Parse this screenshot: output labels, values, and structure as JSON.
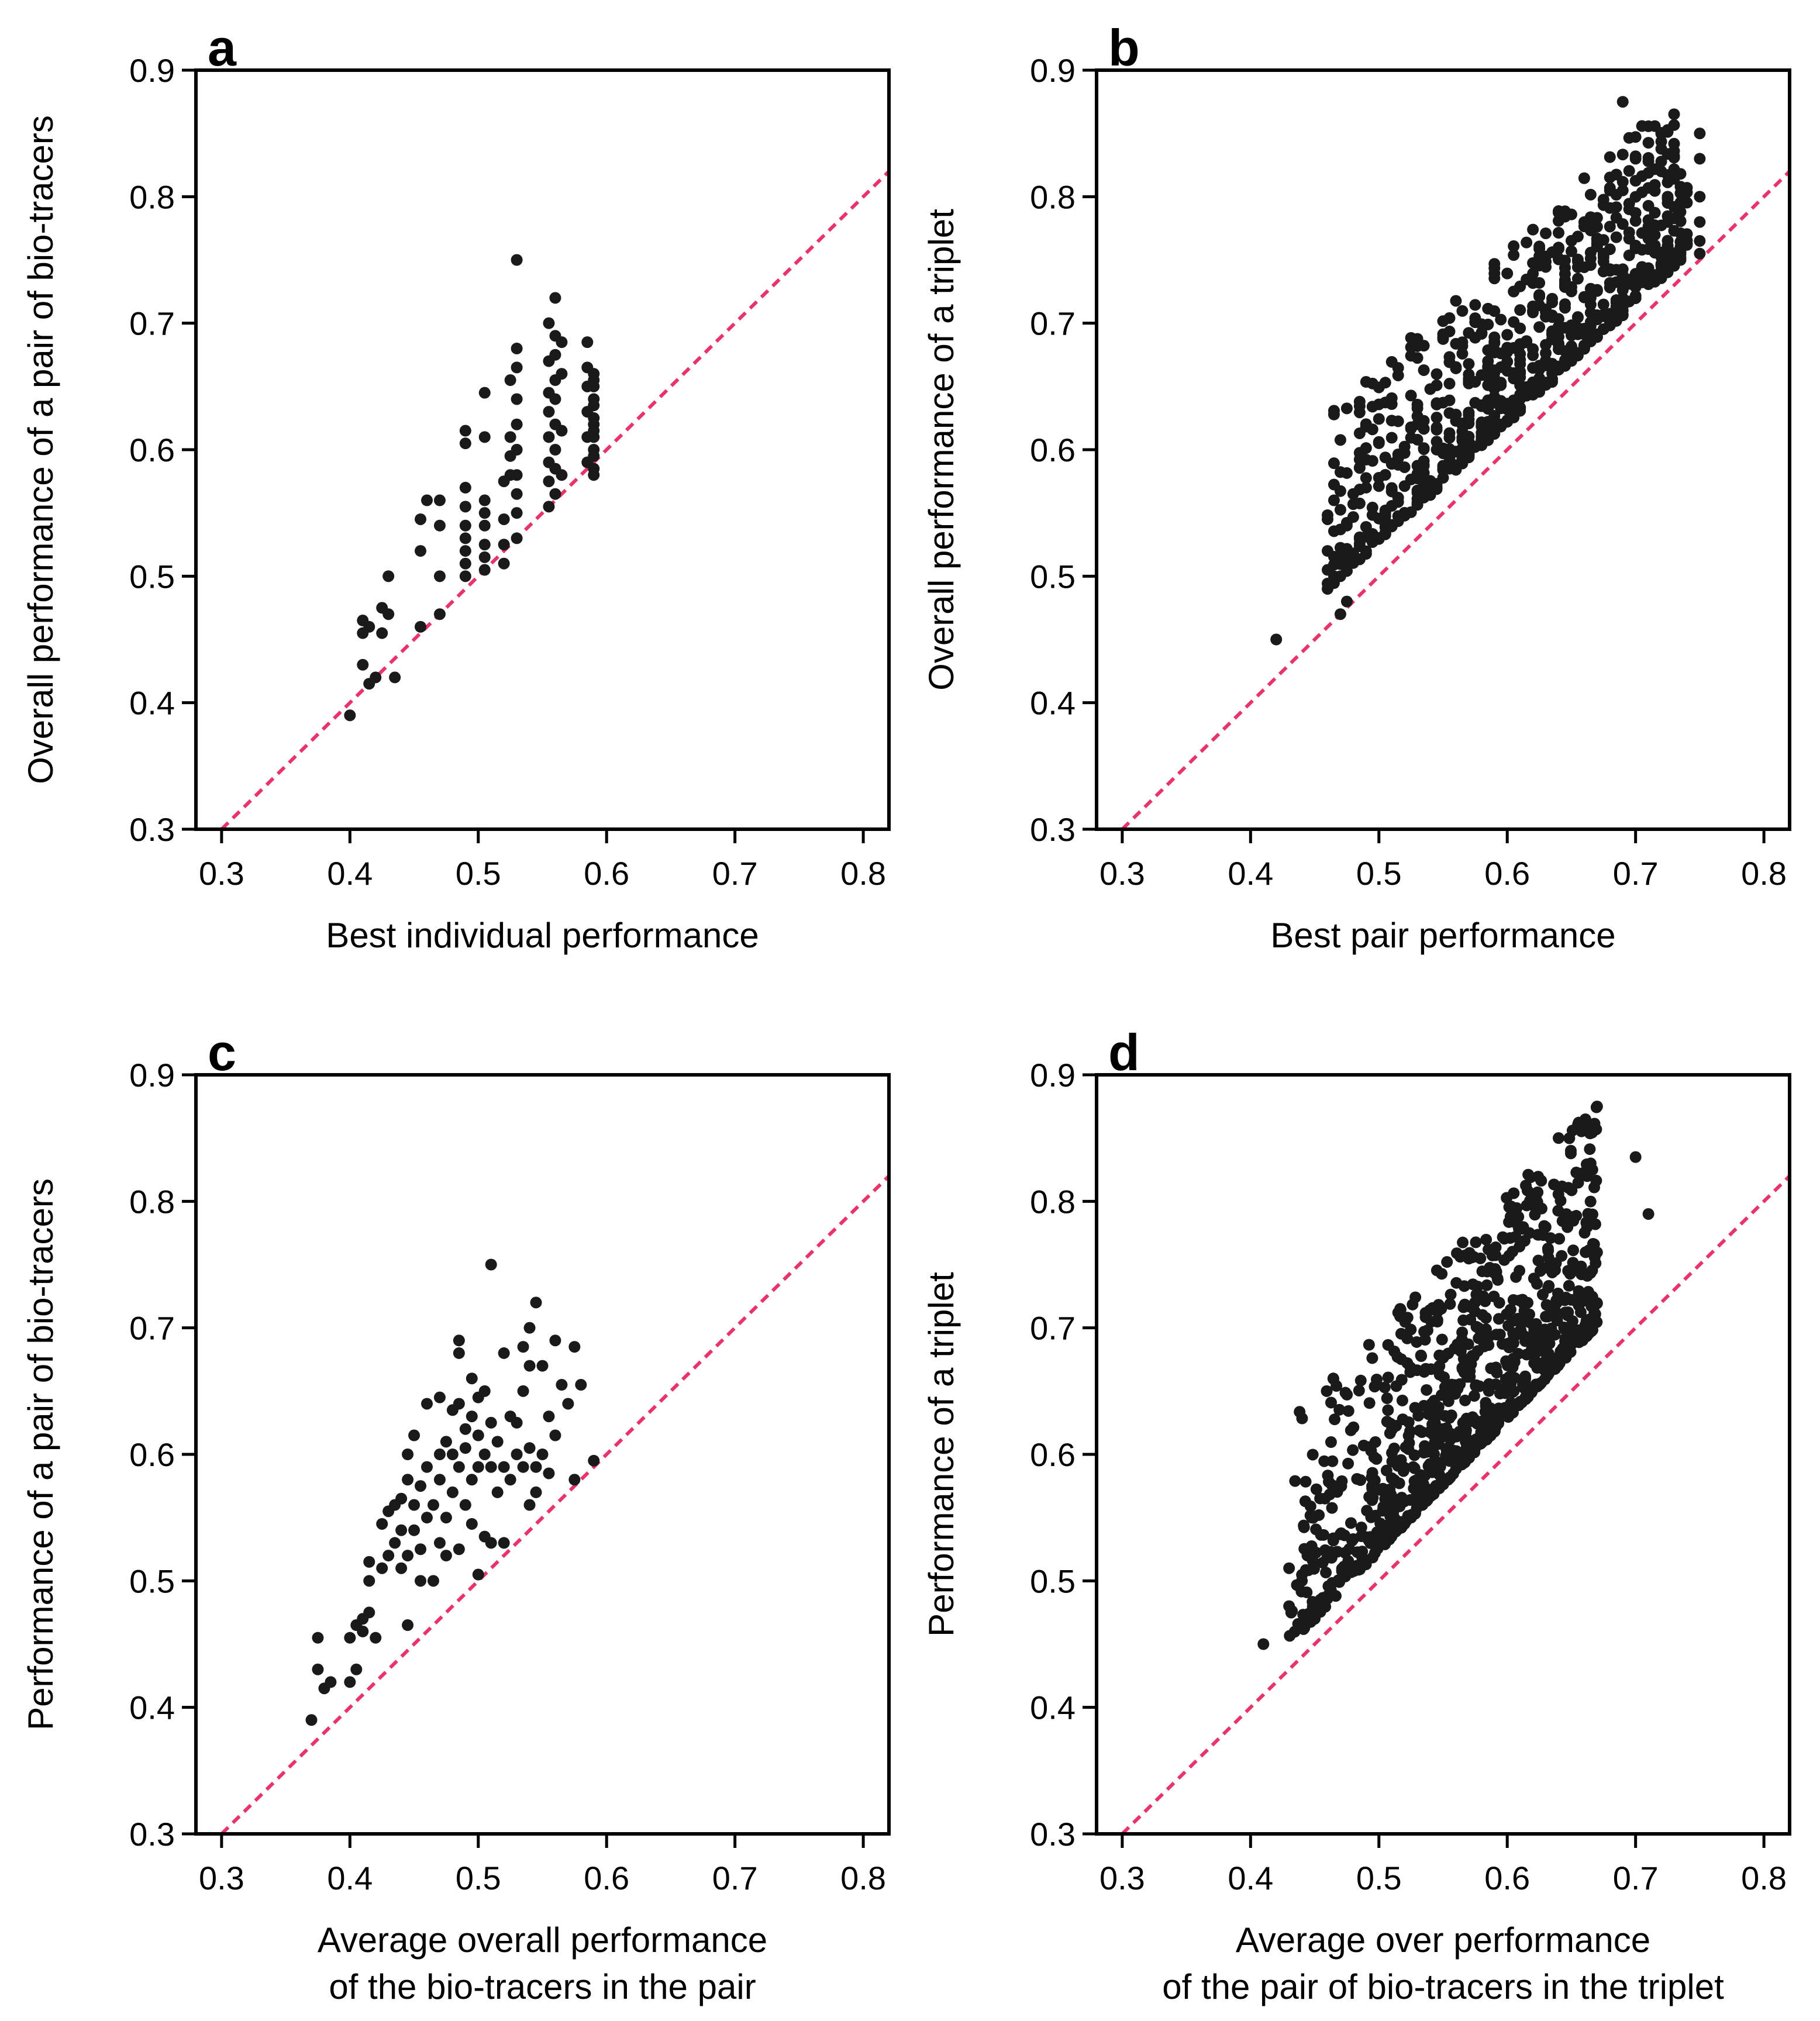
{
  "colors": {
    "points": "#1a1a1a",
    "reference_line": "#e8346a",
    "axes": "#000000",
    "background": "#ffffff"
  },
  "chart_data": [
    {
      "type": "scatter",
      "panel": "a",
      "xlabel": [
        "Best individual performance"
      ],
      "ylabel": "Overall performance of a pair of bio-tracers",
      "xlim": [
        0.28,
        0.82
      ],
      "ylim": [
        0.3,
        0.9
      ],
      "xticks": [
        "0.3",
        "0.4",
        "0.5",
        "0.6",
        "0.7",
        "0.8"
      ],
      "yticks": [
        "0.3",
        "0.4",
        "0.5",
        "0.6",
        "0.7",
        "0.8",
        "0.9"
      ],
      "reference_line": "y = x",
      "points": [
        [
          0.4,
          0.39
        ],
        [
          0.41,
          0.43
        ],
        [
          0.41,
          0.455
        ],
        [
          0.41,
          0.465
        ],
        [
          0.415,
          0.415
        ],
        [
          0.415,
          0.46
        ],
        [
          0.42,
          0.42
        ],
        [
          0.425,
          0.455
        ],
        [
          0.425,
          0.475
        ],
        [
          0.43,
          0.47
        ],
        [
          0.43,
          0.5
        ],
        [
          0.435,
          0.42
        ],
        [
          0.455,
          0.46
        ],
        [
          0.455,
          0.52
        ],
        [
          0.455,
          0.545
        ],
        [
          0.46,
          0.56
        ],
        [
          0.47,
          0.47
        ],
        [
          0.47,
          0.5
        ],
        [
          0.47,
          0.54
        ],
        [
          0.47,
          0.56
        ],
        [
          0.49,
          0.5
        ],
        [
          0.49,
          0.51
        ],
        [
          0.49,
          0.52
        ],
        [
          0.49,
          0.53
        ],
        [
          0.49,
          0.54
        ],
        [
          0.49,
          0.555
        ],
        [
          0.49,
          0.57
        ],
        [
          0.49,
          0.605
        ],
        [
          0.49,
          0.615
        ],
        [
          0.505,
          0.505
        ],
        [
          0.505,
          0.515
        ],
        [
          0.505,
          0.525
        ],
        [
          0.505,
          0.54
        ],
        [
          0.505,
          0.55
        ],
        [
          0.505,
          0.56
        ],
        [
          0.505,
          0.645
        ],
        [
          0.505,
          0.61
        ],
        [
          0.52,
          0.51
        ],
        [
          0.52,
          0.525
        ],
        [
          0.52,
          0.545
        ],
        [
          0.52,
          0.575
        ],
        [
          0.525,
          0.58
        ],
        [
          0.525,
          0.595
        ],
        [
          0.525,
          0.61
        ],
        [
          0.525,
          0.655
        ],
        [
          0.53,
          0.53
        ],
        [
          0.53,
          0.55
        ],
        [
          0.53,
          0.565
        ],
        [
          0.53,
          0.58
        ],
        [
          0.53,
          0.6
        ],
        [
          0.53,
          0.62
        ],
        [
          0.53,
          0.64
        ],
        [
          0.53,
          0.665
        ],
        [
          0.53,
          0.68
        ],
        [
          0.53,
          0.75
        ],
        [
          0.555,
          0.555
        ],
        [
          0.555,
          0.575
        ],
        [
          0.555,
          0.59
        ],
        [
          0.555,
          0.61
        ],
        [
          0.555,
          0.63
        ],
        [
          0.555,
          0.645
        ],
        [
          0.555,
          0.67
        ],
        [
          0.555,
          0.7
        ],
        [
          0.56,
          0.565
        ],
        [
          0.56,
          0.585
        ],
        [
          0.56,
          0.6
        ],
        [
          0.56,
          0.62
        ],
        [
          0.56,
          0.64
        ],
        [
          0.56,
          0.655
        ],
        [
          0.56,
          0.675
        ],
        [
          0.56,
          0.69
        ],
        [
          0.56,
          0.72
        ],
        [
          0.565,
          0.58
        ],
        [
          0.565,
          0.615
        ],
        [
          0.565,
          0.66
        ],
        [
          0.565,
          0.685
        ],
        [
          0.585,
          0.59
        ],
        [
          0.585,
          0.61
        ],
        [
          0.585,
          0.63
        ],
        [
          0.585,
          0.65
        ],
        [
          0.585,
          0.665
        ],
        [
          0.585,
          0.685
        ],
        [
          0.59,
          0.585
        ],
        [
          0.59,
          0.6
        ],
        [
          0.59,
          0.615
        ],
        [
          0.59,
          0.625
        ],
        [
          0.59,
          0.64
        ],
        [
          0.59,
          0.655
        ],
        [
          0.59,
          0.58
        ],
        [
          0.59,
          0.595
        ],
        [
          0.59,
          0.61
        ],
        [
          0.59,
          0.62
        ],
        [
          0.59,
          0.635
        ],
        [
          0.59,
          0.65
        ],
        [
          0.59,
          0.66
        ]
      ]
    },
    {
      "type": "scatter",
      "panel": "b",
      "xlabel": [
        "Best pair performance"
      ],
      "ylabel": "Overall performance of a triplet",
      "xlim": [
        0.28,
        0.82
      ],
      "ylim": [
        0.3,
        0.9
      ],
      "xticks": [
        "0.3",
        "0.4",
        "0.5",
        "0.6",
        "0.7",
        "0.8"
      ],
      "yticks": [
        "0.3",
        "0.4",
        "0.5",
        "0.6",
        "0.7",
        "0.8",
        "0.9"
      ],
      "reference_line": "y = x",
      "gen": {
        "x_min": 0.46,
        "x_max": 0.74,
        "intercept": 0.1,
        "slope": 0.95,
        "spread": 0.085,
        "count": 780,
        "seed": 7
      },
      "points": [
        [
          0.42,
          0.45
        ],
        [
          0.46,
          0.49
        ],
        [
          0.46,
          0.505
        ],
        [
          0.46,
          0.52
        ],
        [
          0.46,
          0.545
        ],
        [
          0.465,
          0.56
        ],
        [
          0.47,
          0.47
        ],
        [
          0.47,
          0.5
        ],
        [
          0.475,
          0.48
        ],
        [
          0.475,
          0.54
        ],
        [
          0.48,
          0.565
        ],
        [
          0.69,
          0.875
        ],
        [
          0.7,
          0.83
        ],
        [
          0.72,
          0.82
        ],
        [
          0.75,
          0.85
        ],
        [
          0.75,
          0.83
        ],
        [
          0.75,
          0.8
        ],
        [
          0.75,
          0.78
        ],
        [
          0.75,
          0.765
        ],
        [
          0.75,
          0.755
        ],
        [
          0.725,
          0.8
        ],
        [
          0.725,
          0.78
        ],
        [
          0.725,
          0.76
        ]
      ]
    },
    {
      "type": "scatter",
      "panel": "c",
      "xlabel": [
        "Average overall performance",
        "of the bio-tracers in the pair"
      ],
      "ylabel": "Performance of a pair of bio-tracers",
      "xlim": [
        0.28,
        0.82
      ],
      "ylim": [
        0.3,
        0.9
      ],
      "xticks": [
        "0.3",
        "0.4",
        "0.5",
        "0.6",
        "0.7",
        "0.8"
      ],
      "yticks": [
        "0.3",
        "0.4",
        "0.5",
        "0.6",
        "0.7",
        "0.8",
        "0.9"
      ],
      "reference_line": "y = x",
      "points": [
        [
          0.37,
          0.39
        ],
        [
          0.375,
          0.455
        ],
        [
          0.375,
          0.43
        ],
        [
          0.38,
          0.415
        ],
        [
          0.385,
          0.42
        ],
        [
          0.4,
          0.42
        ],
        [
          0.4,
          0.455
        ],
        [
          0.405,
          0.465
        ],
        [
          0.405,
          0.43
        ],
        [
          0.41,
          0.46
        ],
        [
          0.41,
          0.47
        ],
        [
          0.415,
          0.475
        ],
        [
          0.415,
          0.5
        ],
        [
          0.415,
          0.515
        ],
        [
          0.42,
          0.455
        ],
        [
          0.425,
          0.51
        ],
        [
          0.425,
          0.545
        ],
        [
          0.43,
          0.52
        ],
        [
          0.43,
          0.555
        ],
        [
          0.435,
          0.53
        ],
        [
          0.435,
          0.56
        ],
        [
          0.44,
          0.51
        ],
        [
          0.44,
          0.54
        ],
        [
          0.44,
          0.565
        ],
        [
          0.445,
          0.52
        ],
        [
          0.445,
          0.58
        ],
        [
          0.445,
          0.6
        ],
        [
          0.445,
          0.465
        ],
        [
          0.45,
          0.54
        ],
        [
          0.45,
          0.56
        ],
        [
          0.45,
          0.615
        ],
        [
          0.455,
          0.5
        ],
        [
          0.455,
          0.525
        ],
        [
          0.455,
          0.575
        ],
        [
          0.46,
          0.55
        ],
        [
          0.46,
          0.59
        ],
        [
          0.46,
          0.64
        ],
        [
          0.465,
          0.5
        ],
        [
          0.465,
          0.56
        ],
        [
          0.47,
          0.53
        ],
        [
          0.47,
          0.58
        ],
        [
          0.47,
          0.6
        ],
        [
          0.47,
          0.645
        ],
        [
          0.475,
          0.52
        ],
        [
          0.475,
          0.55
        ],
        [
          0.475,
          0.61
        ],
        [
          0.48,
          0.57
        ],
        [
          0.48,
          0.6
        ],
        [
          0.48,
          0.635
        ],
        [
          0.485,
          0.525
        ],
        [
          0.485,
          0.59
        ],
        [
          0.485,
          0.64
        ],
        [
          0.485,
          0.68
        ],
        [
          0.485,
          0.69
        ],
        [
          0.49,
          0.56
        ],
        [
          0.49,
          0.605
        ],
        [
          0.49,
          0.62
        ],
        [
          0.495,
          0.545
        ],
        [
          0.495,
          0.58
        ],
        [
          0.495,
          0.63
        ],
        [
          0.495,
          0.66
        ],
        [
          0.5,
          0.505
        ],
        [
          0.5,
          0.59
        ],
        [
          0.5,
          0.615
        ],
        [
          0.5,
          0.645
        ],
        [
          0.505,
          0.535
        ],
        [
          0.505,
          0.6
        ],
        [
          0.505,
          0.65
        ],
        [
          0.51,
          0.53
        ],
        [
          0.51,
          0.59
        ],
        [
          0.51,
          0.625
        ],
        [
          0.51,
          0.75
        ],
        [
          0.515,
          0.57
        ],
        [
          0.515,
          0.61
        ],
        [
          0.52,
          0.53
        ],
        [
          0.52,
          0.59
        ],
        [
          0.52,
          0.68
        ],
        [
          0.525,
          0.58
        ],
        [
          0.525,
          0.63
        ],
        [
          0.53,
          0.6
        ],
        [
          0.53,
          0.625
        ],
        [
          0.535,
          0.59
        ],
        [
          0.535,
          0.65
        ],
        [
          0.535,
          0.685
        ],
        [
          0.54,
          0.56
        ],
        [
          0.54,
          0.605
        ],
        [
          0.54,
          0.67
        ],
        [
          0.54,
          0.7
        ],
        [
          0.545,
          0.57
        ],
        [
          0.545,
          0.59
        ],
        [
          0.545,
          0.72
        ],
        [
          0.55,
          0.6
        ],
        [
          0.55,
          0.67
        ],
        [
          0.555,
          0.585
        ],
        [
          0.555,
          0.63
        ],
        [
          0.56,
          0.615
        ],
        [
          0.56,
          0.69
        ],
        [
          0.565,
          0.655
        ],
        [
          0.57,
          0.64
        ],
        [
          0.575,
          0.58
        ],
        [
          0.575,
          0.685
        ],
        [
          0.58,
          0.655
        ],
        [
          0.59,
          0.595
        ]
      ]
    },
    {
      "type": "scatter",
      "panel": "d",
      "xlabel": [
        "Average over performance",
        "of the pair of bio-tracers in the triplet"
      ],
      "ylabel": "Performance of a triplet",
      "xlim": [
        0.28,
        0.82
      ],
      "ylim": [
        0.3,
        0.9
      ],
      "xticks": [
        "0.3",
        "0.4",
        "0.5",
        "0.6",
        "0.7",
        "0.8"
      ],
      "yticks": [
        "0.3",
        "0.4",
        "0.5",
        "0.6",
        "0.7",
        "0.8",
        "0.9"
      ],
      "reference_line": "y = x",
      "gen": {
        "x_min": 0.43,
        "x_max": 0.67,
        "intercept": 0.06,
        "slope": 1.05,
        "spread": 0.11,
        "count": 900,
        "seed": 11
      },
      "points": [
        [
          0.41,
          0.45
        ],
        [
          0.43,
          0.48
        ],
        [
          0.44,
          0.5
        ],
        [
          0.45,
          0.47
        ],
        [
          0.43,
          0.51
        ],
        [
          0.67,
          0.875
        ],
        [
          0.7,
          0.835
        ],
        [
          0.71,
          0.79
        ],
        [
          0.665,
          0.83
        ],
        [
          0.64,
          0.85
        ]
      ]
    }
  ],
  "panel_letters": [
    "a",
    "b",
    "c",
    "d"
  ]
}
